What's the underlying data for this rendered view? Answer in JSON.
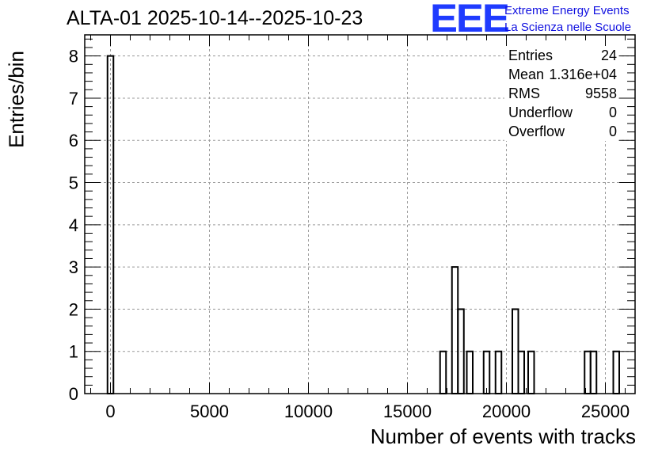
{
  "title": "ALTA-01 2025-10-14--2025-10-23",
  "logo": {
    "mark": "EEE",
    "line1": "Extreme Energy Events",
    "line2": "La Scienza nelle Scuole",
    "color": "#1f3bff"
  },
  "stats": {
    "entries_label": "Entries",
    "entries_value": "24",
    "mean_label": "Mean",
    "mean_value": "1.316e+04",
    "rms_label": "RMS",
    "rms_value": "9558",
    "underflow_label": "Underflow",
    "underflow_value": "0",
    "overflow_label": "Overflow",
    "overflow_value": "0"
  },
  "chart_data": {
    "type": "bar",
    "title": "ALTA-01 2025-10-14--2025-10-23",
    "xlabel": "Number of events with tracks",
    "ylabel": "Entries/bin",
    "xlim": [
      -1300,
      26500
    ],
    "ylim": [
      0,
      8.5
    ],
    "xticks": [
      0,
      5000,
      10000,
      15000,
      20000,
      25000
    ],
    "yticks": [
      0,
      1,
      2,
      3,
      4,
      5,
      6,
      7,
      8
    ],
    "grid": true,
    "bin_width": 300,
    "bins": [
      {
        "x": -150,
        "count": 8
      },
      {
        "x": 16650,
        "count": 1
      },
      {
        "x": 17250,
        "count": 3
      },
      {
        "x": 17550,
        "count": 2
      },
      {
        "x": 18000,
        "count": 1
      },
      {
        "x": 18850,
        "count": 1
      },
      {
        "x": 19450,
        "count": 1
      },
      {
        "x": 20300,
        "count": 2
      },
      {
        "x": 20600,
        "count": 1
      },
      {
        "x": 21100,
        "count": 1
      },
      {
        "x": 23950,
        "count": 1
      },
      {
        "x": 24250,
        "count": 1
      },
      {
        "x": 25400,
        "count": 1
      }
    ]
  }
}
